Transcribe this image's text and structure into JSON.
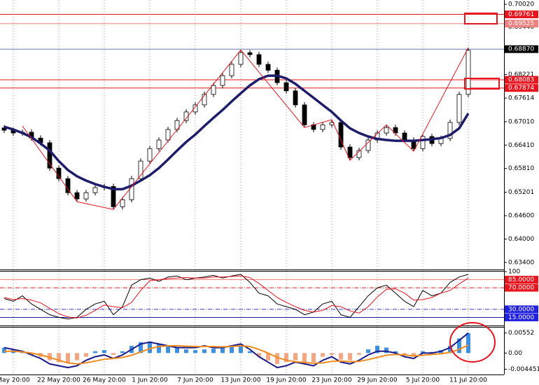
{
  "chart_data": [
    {
      "type": "candlestick",
      "categories": [
        null,
        "May 20:00",
        null,
        null,
        null,
        null,
        "22 May 20:00",
        null,
        null,
        null,
        null,
        "26 May 20:00",
        null,
        null,
        null,
        null,
        "1 Jun 20:00",
        null,
        null,
        null,
        null,
        "7 Jun 20:00",
        null,
        null,
        null,
        null,
        "13 Jun 20:00",
        null,
        null,
        null,
        null,
        "19 Jun 20:00",
        null,
        null,
        null,
        null,
        "23 Jun 20:00",
        null,
        null,
        null,
        null,
        "29 Jun 20:00",
        null,
        null,
        null,
        null,
        "5 Jul 20:00",
        null,
        null,
        null,
        null,
        "11 Jul 20:00"
      ],
      "open": [
        0.6685,
        0.6679,
        0.6672,
        0.6674,
        0.6659,
        0.6647,
        0.6582,
        0.6555,
        0.6519,
        0.6503,
        0.6519,
        0.6532,
        0.6535,
        0.6483,
        0.6501,
        0.6555,
        0.66,
        0.6632,
        0.6654,
        0.6681,
        0.6704,
        0.6726,
        0.6744,
        0.6771,
        0.6794,
        0.6819,
        0.6848,
        0.6878,
        0.6873,
        0.6848,
        0.6833,
        0.6801,
        0.678,
        0.6744,
        0.6693,
        0.6681,
        0.6693,
        0.6699,
        0.6636,
        0.6609,
        0.6627,
        0.6654,
        0.6672,
        0.6686,
        0.6672,
        0.6654,
        0.6632,
        0.6663,
        0.6645,
        0.6658,
        0.6699,
        0.6771
      ],
      "high": [
        0.6692,
        0.6686,
        0.6681,
        0.6681,
        0.6666,
        0.6654,
        0.6589,
        0.6562,
        0.6526,
        0.6526,
        0.6539,
        0.6542,
        0.6542,
        0.6508,
        0.6562,
        0.6607,
        0.6639,
        0.6661,
        0.6688,
        0.6711,
        0.6733,
        0.6751,
        0.6778,
        0.6801,
        0.6826,
        0.6855,
        0.6885,
        0.6885,
        0.688,
        0.6855,
        0.684,
        0.6808,
        0.6787,
        0.6751,
        0.67,
        0.67,
        0.6706,
        0.6706,
        0.6643,
        0.6634,
        0.6661,
        0.6679,
        0.6693,
        0.6693,
        0.6679,
        0.6661,
        0.667,
        0.667,
        0.6665,
        0.6706,
        0.6778,
        0.6891
      ],
      "low": [
        0.6672,
        0.6665,
        0.6665,
        0.6652,
        0.664,
        0.6575,
        0.6548,
        0.6512,
        0.6496,
        0.6496,
        0.6512,
        0.6525,
        0.6476,
        0.6476,
        0.6494,
        0.6548,
        0.6593,
        0.6625,
        0.6647,
        0.6674,
        0.6697,
        0.6719,
        0.6737,
        0.6764,
        0.6787,
        0.6812,
        0.6841,
        0.6866,
        0.6841,
        0.6826,
        0.6794,
        0.6773,
        0.6737,
        0.6686,
        0.6674,
        0.6674,
        0.6686,
        0.6629,
        0.6602,
        0.6602,
        0.662,
        0.6647,
        0.6665,
        0.6665,
        0.6647,
        0.6625,
        0.6625,
        0.6638,
        0.6638,
        0.6651,
        0.6692,
        0.6764
      ],
      "close": [
        0.6679,
        0.6672,
        0.6674,
        0.6659,
        0.6647,
        0.6582,
        0.6555,
        0.6519,
        0.6503,
        0.6519,
        0.6532,
        0.6535,
        0.6483,
        0.6501,
        0.6555,
        0.66,
        0.6632,
        0.6654,
        0.6681,
        0.6704,
        0.6726,
        0.6744,
        0.6771,
        0.6794,
        0.6819,
        0.6848,
        0.6878,
        0.6873,
        0.6848,
        0.6833,
        0.6801,
        0.678,
        0.6744,
        0.6693,
        0.6681,
        0.6693,
        0.6699,
        0.6636,
        0.6609,
        0.6627,
        0.6654,
        0.6672,
        0.6686,
        0.6672,
        0.6654,
        0.6632,
        0.6663,
        0.6645,
        0.6658,
        0.6699,
        0.6771,
        0.6884
      ],
      "up_color": "#ffffff",
      "down_color": "#000000",
      "outline_color": "#000000",
      "series": [
        {
          "type": "line",
          "color": "#1c1c6b",
          "width": 3.5,
          "values": [
            0.6688,
            0.6681,
            0.6672,
            0.6661,
            0.6645,
            0.6627,
            0.66,
            0.6577,
            0.6561,
            0.655,
            0.6541,
            0.6534,
            0.6528,
            0.6528,
            0.6537,
            0.655,
            0.6564,
            0.6582,
            0.6604,
            0.6627,
            0.6649,
            0.6668,
            0.669,
            0.6711,
            0.6731,
            0.6753,
            0.6774,
            0.6794,
            0.681,
            0.6819,
            0.6819,
            0.6812,
            0.6798,
            0.678,
            0.6762,
            0.6744,
            0.6726,
            0.6704,
            0.6684,
            0.6672,
            0.6663,
            0.6657,
            0.6654,
            0.6652,
            0.6652,
            0.6652,
            0.6654,
            0.6656,
            0.6659,
            0.6667,
            0.6684,
            0.6722
          ]
        },
        {
          "type": "line",
          "color": "#e8141e",
          "width": 1,
          "x": [
            2,
            8,
            12,
            26,
            33,
            36,
            38,
            42,
            45,
            51
          ],
          "values": [
            0.669,
            0.6496,
            0.6476,
            0.6885,
            0.6686,
            0.6706,
            0.6602,
            0.6693,
            0.6625,
            0.6891
          ]
        }
      ],
      "ylim": [
        0.6322,
        0.7013
      ],
      "yticks": [
        {
          "value": 0.7002,
          "label": "0.70020"
        },
        {
          "value": 0.6944,
          "label": "0.69440"
        },
        0.68221,
        0.67614,
        {
          "value": 0.6701,
          "label": "0.67010"
        },
        {
          "value": 0.6641,
          "label": "0.66410"
        },
        {
          "value": 0.6581,
          "label": "0.65810"
        },
        0.65201,
        {
          "value": 0.646,
          "label": "0.64600"
        },
        {
          "value": 0.64,
          "label": "0.64000"
        },
        {
          "value": 0.634,
          "label": "0.63400"
        }
      ],
      "levels": [
        0.69761,
        0.69525,
        {
          "value": 0.6887,
          "label": "0.68870"
        },
        0.68083,
        0.67874
      ],
      "level_colors": [
        "#e8141e",
        "#f08080",
        "#6b7fa8",
        "#e8141e",
        "#e8141e"
      ],
      "level_label_colors": [
        "#e8141e",
        "#f08080",
        "#000000",
        "#e8141e",
        "#e8141e"
      ],
      "grid": true
    },
    {
      "type": "line",
      "series": [
        {
          "type": "line",
          "color": "#000000",
          "width": 1,
          "values": [
            50,
            45,
            55,
            40,
            30,
            20,
            15,
            12,
            15,
            30,
            40,
            45,
            20,
            35,
            75,
            85,
            88,
            82,
            90,
            92,
            85,
            88,
            90,
            93,
            88,
            92,
            95,
            80,
            60,
            55,
            40,
            35,
            30,
            20,
            25,
            40,
            45,
            20,
            15,
            35,
            55,
            70,
            75,
            60,
            45,
            35,
            65,
            55,
            60,
            80,
            90,
            95
          ]
        },
        {
          "type": "line",
          "color": "#e8141e",
          "width": 1,
          "values": [
            52,
            48,
            50,
            47,
            42,
            32,
            22,
            16,
            14,
            19,
            28,
            38,
            35,
            33,
            43,
            65,
            83,
            85,
            87,
            88,
            89,
            88,
            88,
            90,
            90,
            91,
            92,
            89,
            78,
            65,
            52,
            43,
            35,
            28,
            25,
            28,
            37,
            35,
            27,
            23,
            35,
            53,
            67,
            68,
            60,
            47,
            48,
            52,
            60,
            65,
            77,
            88
          ]
        }
      ],
      "ylim": [
        0,
        100
      ],
      "yticks": [
        100
      ],
      "levels": [
        {
          "value": 85,
          "label": "85.0000"
        },
        {
          "value": 70,
          "label": "70.0000"
        },
        {
          "value": 30,
          "label": "30.0000"
        },
        {
          "value": 15,
          "label": "15.0000"
        }
      ],
      "level_colors": [
        "#f08080",
        "#e8141e",
        "#3a3ad0",
        "#1c1ca0"
      ],
      "level_label_colors": [
        "#e8141e",
        "#e8141e",
        "#2020e0",
        "#2020e0"
      ]
    },
    {
      "type": "bar",
      "series": [
        {
          "type": "bar",
          "color": "#3d8fe0",
          "neg_color": "#f4a582",
          "values": [
            0.0015,
            0.001,
            0.0005,
            -0.0005,
            -0.001,
            -0.002,
            -0.0025,
            -0.0028,
            -0.002,
            -0.001,
            0.0005,
            0.0008,
            -0.0005,
            0.0005,
            0.002,
            0.003,
            0.0032,
            0.0025,
            0.0018,
            0.0015,
            0.001,
            0.0008,
            0.001,
            0.0012,
            0.0015,
            0.0018,
            0.002,
            0.0005,
            -0.001,
            -0.002,
            -0.003,
            -0.0025,
            -0.002,
            -0.0028,
            -0.0025,
            -0.001,
            -0.0005,
            -0.0018,
            -0.002,
            -0.0005,
            0.001,
            0.002,
            0.0015,
            0.0005,
            -0.0005,
            -0.001,
            0.0005,
            0.0003,
            0.0008,
            0.002,
            0.004,
            0.0055
          ]
        },
        {
          "type": "line",
          "color": "#1a1a8c",
          "width": 2,
          "values": [
            0.0015,
            0.001,
            0.0005,
            -0.0005,
            -0.0015,
            -0.003,
            -0.0035,
            -0.004,
            -0.0035,
            -0.002,
            -0.001,
            -0.0005,
            -0.0015,
            -0.0005,
            0.001,
            0.0025,
            0.003,
            0.0025,
            0.002,
            0.0015,
            0.0015,
            0.0015,
            0.002,
            0.0015,
            0.0015,
            0.002,
            0.0025,
            0.001,
            -0.001,
            -0.0025,
            -0.004,
            -0.0035,
            -0.0025,
            -0.003,
            -0.0035,
            -0.002,
            -0.001,
            -0.0025,
            -0.003,
            -0.002,
            -0.0005,
            0.0005,
            0.0005,
            0,
            -0.001,
            -0.0015,
            0,
            0,
            0.0005,
            0.0015,
            0.0035,
            0.0055
          ]
        },
        {
          "type": "line",
          "color": "#f08c1e",
          "width": 2,
          "values": [
            0.0005,
            0.0005,
            0.0003,
            0,
            -0.0005,
            -0.0012,
            -0.002,
            -0.0027,
            -0.003,
            -0.0027,
            -0.0022,
            -0.0017,
            -0.0015,
            -0.0012,
            -0.0006,
            0.0003,
            0.0012,
            0.0018,
            0.002,
            0.002,
            0.0019,
            0.0018,
            0.0018,
            0.0018,
            0.0017,
            0.0018,
            0.002,
            0.0018,
            0.001,
            0,
            -0.0012,
            -0.002,
            -0.0024,
            -0.0026,
            -0.0028,
            -0.0027,
            -0.0023,
            -0.0022,
            -0.0024,
            -0.0023,
            -0.0018,
            -0.0012,
            -0.0006,
            -0.0004,
            -0.0005,
            -0.0008,
            -0.0006,
            -0.0004,
            -0.0002,
            0.0002,
            0.001,
            0.0022
          ]
        }
      ],
      "ylim": [
        -0.0059,
        0.007
      ],
      "yticks": [
        0.00552,
        {
          "value": 0,
          "label": "0.00"
        },
        -0.0044515
      ]
    }
  ]
}
